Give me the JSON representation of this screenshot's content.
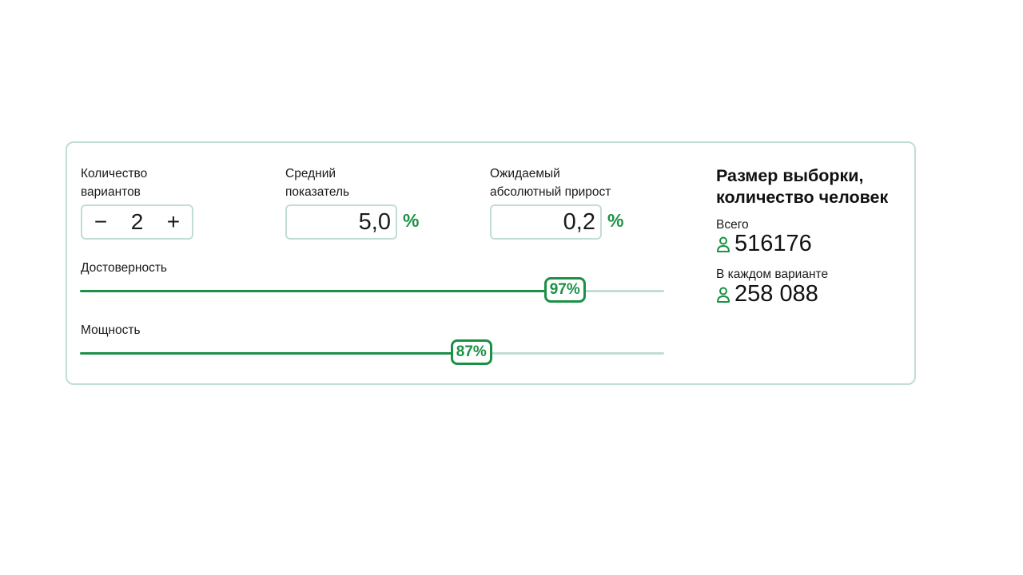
{
  "variants": {
    "label_line1": "Количество",
    "label_line2": "вариантов",
    "value": "2",
    "minus": "−",
    "plus": "+"
  },
  "mean": {
    "label_line1": "Средний",
    "label_line2": "показатель",
    "value": "5,0",
    "unit": "%"
  },
  "uplift": {
    "label_line1": "Ожидаемый",
    "label_line2": "абсолютный прирост",
    "value": "0,2",
    "unit": "%"
  },
  "confidence": {
    "label": "Достоверность",
    "value_text": "97%",
    "fill_fraction": 0.83
  },
  "power": {
    "label": "Мощность",
    "value_text": "87%",
    "fill_fraction": 0.67
  },
  "result": {
    "title_line1": "Размер выборки,",
    "title_line2": "количество человек",
    "total_label": "Всего",
    "total_value": "516176",
    "per_variant_label": "В каждом варианте",
    "per_variant_value": "258 088"
  },
  "colors": {
    "accent": "#1b9145",
    "border": "#c2ddd6"
  },
  "icons": {
    "person": "person-icon"
  }
}
